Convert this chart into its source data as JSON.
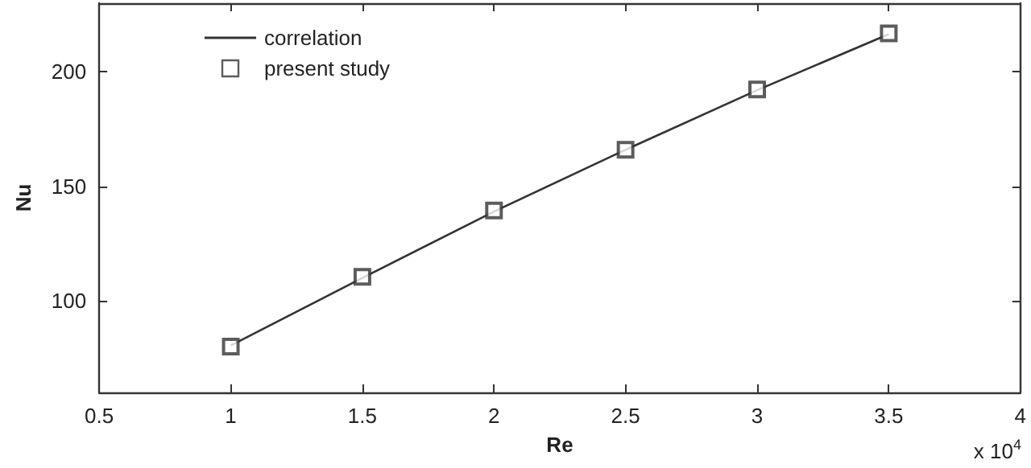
{
  "chart_data": {
    "type": "scatter",
    "xlabel": "Re",
    "ylabel": "Nu",
    "annotations": [
      "x 10$^{4}$"
    ],
    "xlim": [
      0.5,
      4
    ],
    "xticks": [
      0.5,
      1,
      1.5,
      2,
      2.5,
      3,
      3.5,
      4
    ],
    "ylim": [
      60,
      230
    ],
    "yticks": [
      100,
      150,
      200
    ],
    "series": [
      {
        "name": "correlation",
        "type": "line",
        "color": "#333333",
        "marker": "none",
        "line_style": "solid",
        "x": [
          1,
          1.5,
          2,
          2.5,
          3,
          3.5
        ],
        "values": [
          80.5,
          110,
          139,
          166,
          192,
          216.5
        ]
      },
      {
        "name": "present study",
        "color": "#333333",
        "marker": "square",
        "x": [
          1,
          1.5,
          2,
          2.5,
          3,
          3.5
        ],
        "values": [
          80,
          110.5,
          139.5,
          166,
          192.3,
          216.8
        ]
      }
    ],
    "legend": "top left",
    "grid": false
  }
}
